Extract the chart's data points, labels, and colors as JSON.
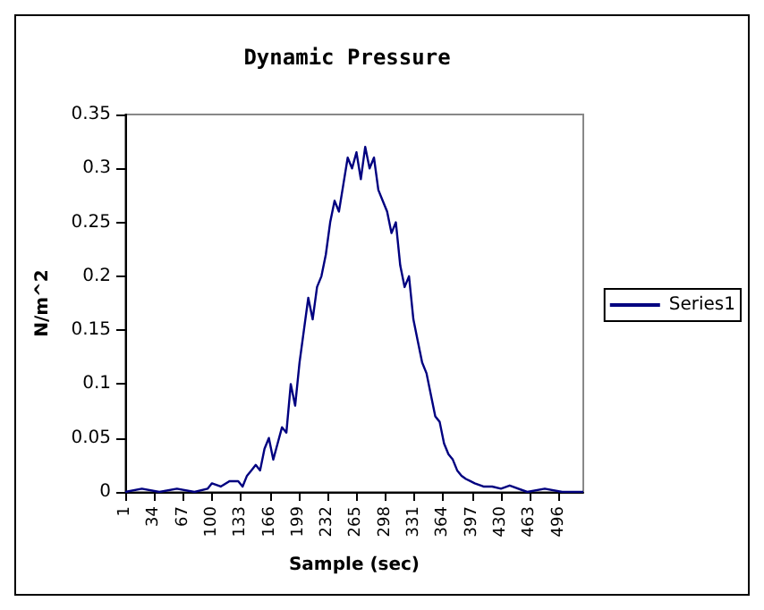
{
  "chart_data": {
    "type": "line",
    "title": "Dynamic Pressure",
    "xlabel": "Sample (sec)",
    "ylabel": "N/m^2",
    "x": [
      1,
      20,
      40,
      60,
      80,
      95,
      100,
      110,
      120,
      130,
      135,
      140,
      145,
      150,
      155,
      160,
      165,
      170,
      175,
      180,
      185,
      190,
      195,
      200,
      205,
      210,
      215,
      220,
      225,
      230,
      235,
      240,
      245,
      250,
      255,
      260,
      265,
      270,
      275,
      280,
      285,
      290,
      295,
      300,
      305,
      310,
      315,
      320,
      325,
      330,
      335,
      340,
      345,
      350,
      355,
      360,
      365,
      370,
      375,
      380,
      385,
      390,
      395,
      400,
      410,
      420,
      430,
      440,
      460,
      480,
      500,
      524
    ],
    "series": [
      {
        "name": "Series1",
        "color": "#000080",
        "values": [
          0,
          0.003,
          0,
          0.003,
          0,
          0.003,
          0.008,
          0.005,
          0.01,
          0.01,
          0.005,
          0.015,
          0.02,
          0.025,
          0.02,
          0.04,
          0.05,
          0.03,
          0.045,
          0.06,
          0.055,
          0.1,
          0.08,
          0.12,
          0.15,
          0.18,
          0.16,
          0.19,
          0.2,
          0.22,
          0.25,
          0.27,
          0.26,
          0.285,
          0.31,
          0.3,
          0.315,
          0.29,
          0.32,
          0.3,
          0.31,
          0.28,
          0.27,
          0.26,
          0.24,
          0.25,
          0.21,
          0.19,
          0.2,
          0.16,
          0.14,
          0.12,
          0.11,
          0.09,
          0.07,
          0.065,
          0.045,
          0.035,
          0.03,
          0.02,
          0.015,
          0.012,
          0.01,
          0.008,
          0.005,
          0.005,
          0.003,
          0.006,
          0,
          0.003,
          0,
          0
        ]
      }
    ],
    "xlim": [
      1,
      524
    ],
    "xticks": [
      1,
      34,
      67,
      100,
      133,
      166,
      199,
      232,
      265,
      298,
      331,
      364,
      397,
      430,
      463,
      496
    ],
    "ylim": [
      0,
      0.35
    ],
    "yticks": [
      0,
      0.05,
      0.1,
      0.15,
      0.2,
      0.25,
      0.3,
      0.35
    ],
    "grid": false,
    "legend": "right",
    "marker": "none",
    "line_style": "solid"
  }
}
